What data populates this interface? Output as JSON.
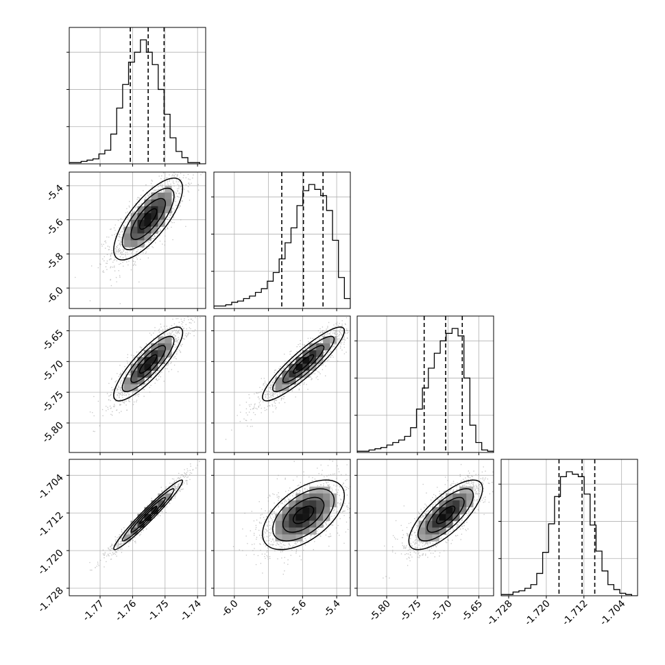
{
  "chart_data": {
    "type": "corner",
    "grid": true,
    "parameters": [
      {
        "ticks": [
          "-1.77",
          "-1.76",
          "-1.75",
          "-1.74"
        ],
        "tick_values": [
          -1.77,
          -1.76,
          -1.75,
          -1.74
        ],
        "range": [
          -1.7795,
          -1.7375
        ],
        "quantiles": [
          -1.7607,
          -1.7552,
          -1.7503
        ],
        "center": -1.7552,
        "spread": 0.0053
      },
      {
        "ticks": [
          "-6.0",
          "-5.8",
          "-5.6",
          "-5.4"
        ],
        "tick_values": [
          -6.0,
          -5.8,
          -5.6,
          -5.4
        ],
        "range": [
          -6.12,
          -5.32
        ],
        "quantiles": [
          -5.722,
          -5.595,
          -5.48
        ],
        "center": -5.595,
        "spread": 0.12
      },
      {
        "ticks": [
          "-5.80",
          "-5.75",
          "-5.70",
          "-5.65"
        ],
        "tick_values": [
          -5.8,
          -5.75,
          -5.7,
          -5.65
        ],
        "range": [
          -5.848,
          -5.626
        ],
        "quantiles": [
          -5.739,
          -5.704,
          -5.677
        ],
        "center": -5.704,
        "spread": 0.03
      },
      {
        "ticks": [
          "-1.728",
          "-1.720",
          "-1.712",
          "-1.704"
        ],
        "tick_values": [
          -1.728,
          -1.72,
          -1.712,
          -1.704
        ],
        "range": [
          -1.7296,
          -1.7006
        ],
        "quantiles": [
          -1.7173,
          -1.7124,
          -1.7097
        ],
        "center": -1.7124,
        "spread": 0.0037
      }
    ],
    "histograms": [
      {
        "counts": [
          1,
          1,
          2,
          3,
          4,
          8,
          11,
          24,
          45,
          64,
          82,
          90,
          100,
          90,
          80,
          60,
          40,
          21,
          10,
          5,
          1,
          1,
          0
        ]
      },
      {
        "counts": [
          2,
          2,
          3,
          5,
          6,
          8,
          10,
          13,
          16,
          22,
          29,
          40,
          53,
          65,
          83,
          95,
          100,
          96,
          91,
          79,
          55,
          25,
          8
        ]
      },
      {
        "counts": [
          1,
          1,
          2,
          3,
          4,
          6,
          8,
          10,
          13,
          20,
          35,
          52,
          68,
          80,
          90,
          96,
          100,
          94,
          60,
          22,
          8,
          2,
          1
        ]
      },
      {
        "counts": [
          1,
          1,
          3,
          4,
          6,
          9,
          18,
          35,
          58,
          80,
          96,
          100,
          98,
          96,
          82,
          57,
          36,
          20,
          9,
          5,
          2,
          1,
          0
        ]
      }
    ],
    "pair_correlations": [
      {
        "pair": [
          1,
          0
        ],
        "rho": 0.75
      },
      {
        "pair": [
          2,
          0
        ],
        "rho": 0.85
      },
      {
        "pair": [
          2,
          1
        ],
        "rho": 0.9
      },
      {
        "pair": [
          3,
          0
        ],
        "rho": 0.97
      },
      {
        "pair": [
          3,
          1
        ],
        "rho": 0.55
      },
      {
        "pair": [
          3,
          2
        ],
        "rho": 0.75
      }
    ]
  }
}
